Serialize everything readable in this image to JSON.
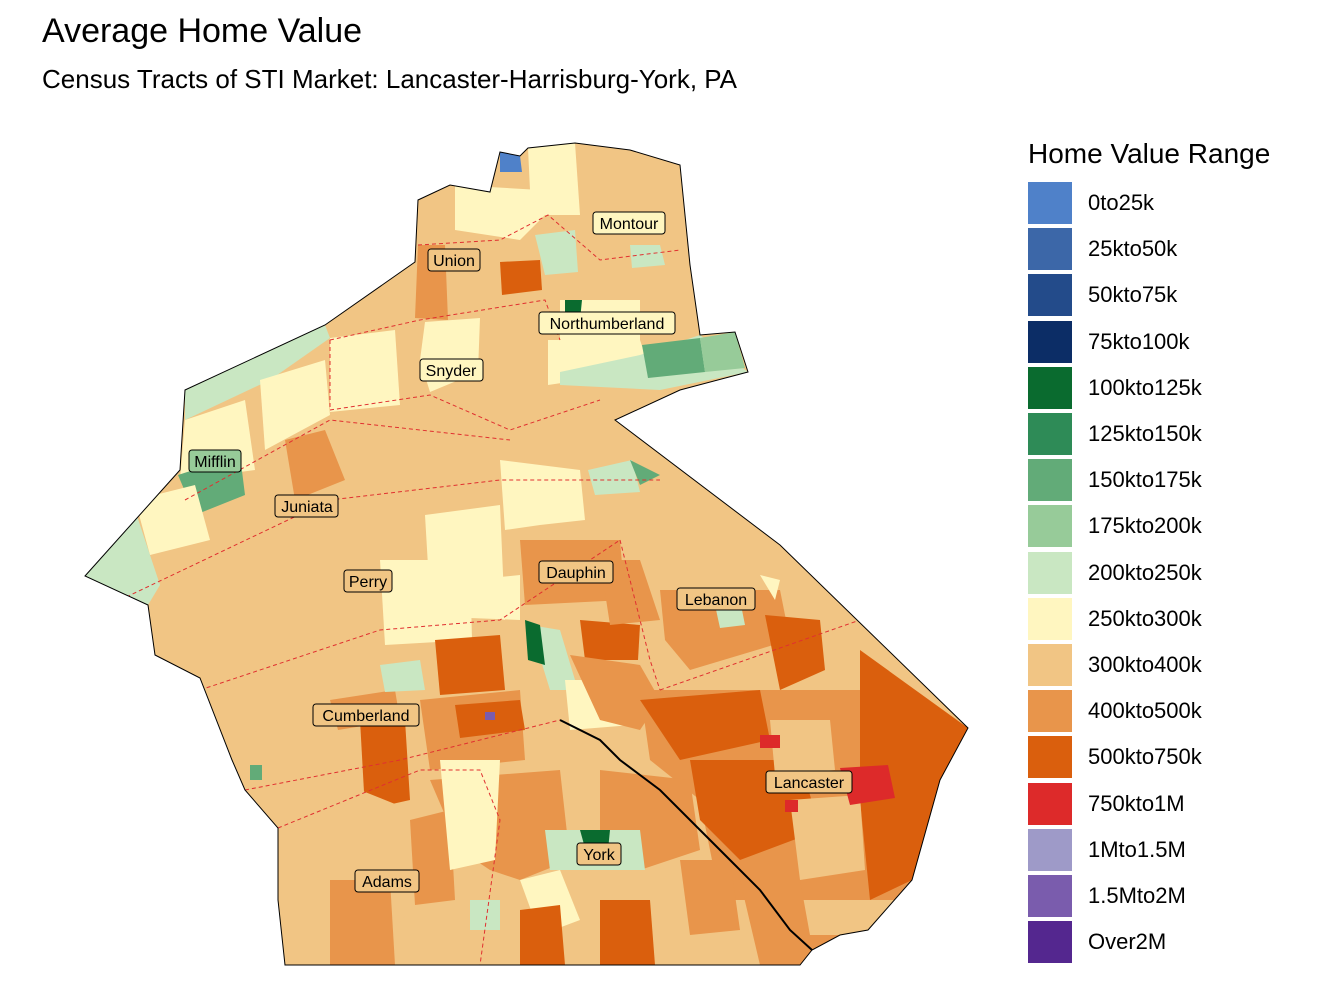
{
  "title": "Average Home Value",
  "subtitle": "Census Tracts of STI Market: Lancaster-Harrisburg-York, PA",
  "legend": {
    "title": "Home Value Range",
    "items": [
      {
        "label": "0to25k",
        "color": "#4f81c9"
      },
      {
        "label": "25kto50k",
        "color": "#3c67a8"
      },
      {
        "label": "50kto75k",
        "color": "#234b8a"
      },
      {
        "label": "75kto100k",
        "color": "#0c2d66"
      },
      {
        "label": "100kto125k",
        "color": "#0a6b2f"
      },
      {
        "label": "125kto150k",
        "color": "#2e8b57"
      },
      {
        "label": "150kto175k",
        "color": "#62ab78"
      },
      {
        "label": "175kto200k",
        "color": "#97cb99"
      },
      {
        "label": "200kto250k",
        "color": "#c9e7c2"
      },
      {
        "label": "250kto300k",
        "color": "#fff6c0"
      },
      {
        "label": "300kto400k",
        "color": "#f1c584"
      },
      {
        "label": "400kto500k",
        "color": "#e8954b"
      },
      {
        "label": "500kto750k",
        "color": "#da5f0d"
      },
      {
        "label": "750kto1M",
        "color": "#dd2a2a"
      },
      {
        "label": "1Mto1.5M",
        "color": "#9e9ac8"
      },
      {
        "label": "1.5Mto2M",
        "color": "#7a5cad"
      },
      {
        "label": "Over2M",
        "color": "#54278f"
      }
    ]
  },
  "counties": {
    "montour": "Montour",
    "union": "Union",
    "northumberland": "Northumberland",
    "snyder": "Snyder",
    "mifflin": "Mifflin",
    "juniata": "Juniata",
    "perry": "Perry",
    "dauphin": "Dauphin",
    "lebanon": "Lebanon",
    "cumberland": "Cumberland",
    "lancaster": "Lancaster",
    "york": "York",
    "adams": "Adams"
  }
}
